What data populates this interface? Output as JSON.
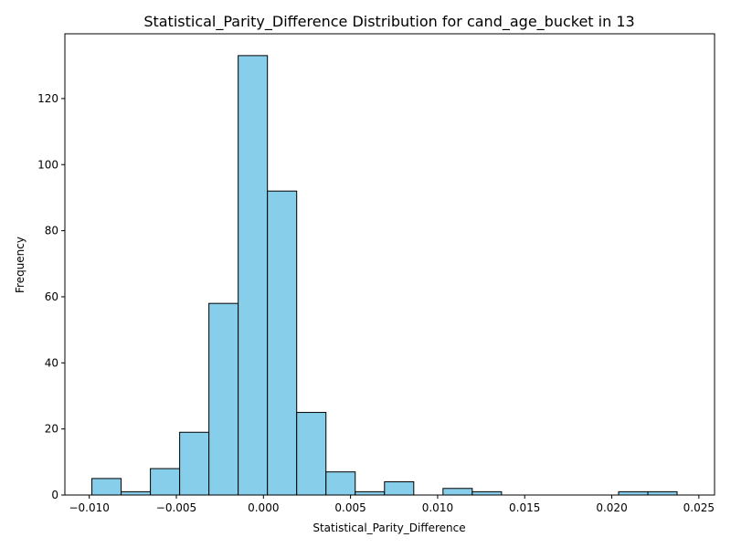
{
  "chart_data": {
    "type": "bar",
    "title": "Statistical_Parity_Difference Distribution for cand_age_bucket in 13",
    "xlabel": "Statistical_Parity_Difference",
    "ylabel": "Frequency",
    "bin_edges": [
      -0.00985,
      -0.00817,
      -0.00649,
      -0.00481,
      -0.00313,
      -0.00145,
      0.00023,
      0.00191,
      0.00359,
      0.00527,
      0.00695,
      0.00863,
      0.01031,
      0.01199,
      0.01367,
      0.01535,
      0.01703,
      0.01871,
      0.02039,
      0.02207,
      0.02375
    ],
    "counts": [
      5,
      1,
      8,
      19,
      58,
      133,
      92,
      25,
      7,
      1,
      4,
      0,
      2,
      1,
      0,
      0,
      0,
      0,
      1,
      1
    ],
    "xlim": [
      -0.0114,
      0.0259
    ],
    "ylim": [
      0,
      139.6
    ],
    "xticks": [
      -0.01,
      -0.005,
      0.0,
      0.005,
      0.01,
      0.015,
      0.02,
      0.025
    ],
    "xtick_labels": [
      "−0.010",
      "−0.005",
      "0.000",
      "0.005",
      "0.010",
      "0.015",
      "0.020",
      "0.025"
    ],
    "yticks": [
      0,
      20,
      40,
      60,
      80,
      100,
      120
    ],
    "ytick_labels": [
      "0",
      "20",
      "40",
      "60",
      "80",
      "100",
      "120"
    ],
    "bar_color": "#87CEEB",
    "edge_color": "#000000",
    "grid": false,
    "legend": "none"
  }
}
